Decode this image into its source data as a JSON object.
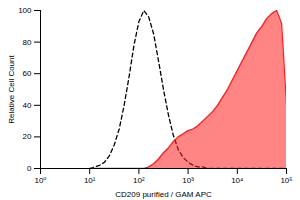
{
  "chart_data": {
    "type": "line",
    "xlabel": "CD209 purified / GAM APC",
    "ylabel": "Relative Cell Count",
    "log": "x",
    "x": [
      10,
      12.6,
      15.8,
      20,
      25.1,
      31.6,
      39.8,
      50.1,
      63.1,
      79.4,
      100,
      126,
      158,
      200,
      251,
      316,
      398,
      501,
      631,
      794,
      1000,
      1259,
      1585,
      1995,
      2512,
      3162,
      3981,
      5012,
      6310,
      7943,
      10000,
      12589,
      15849,
      19953,
      25119,
      31623,
      39811,
      50119,
      63096,
      79433,
      100000
    ],
    "series": [
      {
        "color": "#000000",
        "type": "line",
        "line_style": "dashed",
        "values": [
          0,
          1,
          2,
          4,
          8,
          15,
          25,
          40,
          58,
          78,
          93,
          100,
          96,
          85,
          68,
          50,
          34,
          21,
          12,
          7,
          4,
          2,
          1,
          1,
          0,
          0,
          0,
          0,
          0,
          0,
          0,
          0,
          0,
          0,
          0,
          0,
          0,
          0,
          0,
          0,
          0
        ]
      },
      {
        "color": "#ff2020",
        "type": "area",
        "line_style": "solid",
        "values": [
          0,
          0,
          0,
          0,
          0,
          0,
          0,
          0,
          0,
          0,
          0,
          0,
          1,
          3,
          6,
          10,
          13,
          17,
          20,
          22,
          24,
          25,
          27,
          30,
          33,
          36,
          40,
          45,
          50,
          56,
          62,
          68,
          74,
          80,
          86,
          90,
          95,
          98,
          100,
          92,
          40
        ]
      }
    ],
    "xlim": [
      1,
      100000
    ],
    "xticks": [
      {
        "value": 1,
        "label": "10⁰"
      },
      {
        "value": 10,
        "label": "10¹"
      },
      {
        "value": 100,
        "label": "10²"
      },
      {
        "value": 1000,
        "label": "10³"
      },
      {
        "value": 10000,
        "label": "10⁴"
      },
      {
        "value": 100000,
        "label": "10⁵"
      }
    ],
    "ylim": [
      0,
      100
    ],
    "yticks": [
      0,
      20,
      40,
      60,
      80,
      100
    ],
    "grid": false
  }
}
